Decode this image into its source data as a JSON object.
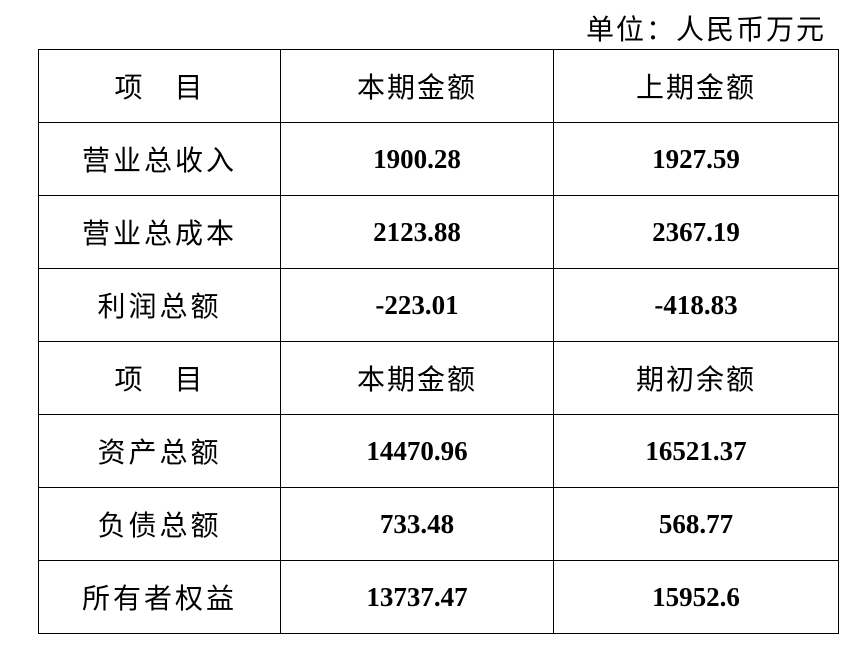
{
  "unit": "单位：人民币万元",
  "header1": [
    "项　目",
    "本期金额",
    "上期金额"
  ],
  "rows1": [
    [
      "营业总收入",
      "1900.28",
      "1927.59"
    ],
    [
      "营业总成本",
      "2123.88",
      "2367.19"
    ],
    [
      "利润总额",
      "-223.01",
      "-418.83"
    ]
  ],
  "header2": [
    "项　目",
    "本期金额",
    "期初余额"
  ],
  "rows2": [
    [
      "资产总额",
      "14470.96",
      "16521.37"
    ],
    [
      "负债总额",
      "733.48",
      "568.77"
    ],
    [
      "所有者权益",
      "13737.47",
      "15952.6"
    ]
  ]
}
